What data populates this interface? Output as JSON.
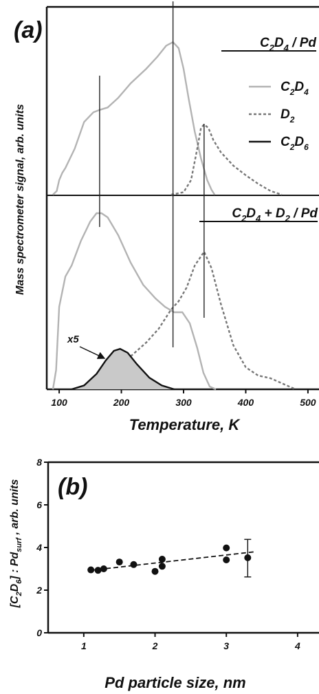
{
  "chart_data": [
    {
      "type": "line",
      "panel_label": "(a)",
      "xlabel": "Temperature, K",
      "ylabel": "Mass spectrometer signal, arb. units",
      "xlim": [
        80,
        520
      ],
      "x_ticks": [
        100,
        200,
        300,
        400,
        500
      ],
      "grid": false,
      "legend_position": "right",
      "legend": [
        {
          "label": "C2D4",
          "color": "#b3b3b3",
          "dash": "solid"
        },
        {
          "label": "D2",
          "color": "#777777",
          "dash": "dashed"
        },
        {
          "label": "C2D6",
          "color": "#111111",
          "dash": "solid"
        }
      ],
      "vertical_markers_K": [
        165,
        283,
        333
      ],
      "subpanels": [
        {
          "title": "C2D4 / Pd",
          "title_parts": [
            [
              "C",
              "n"
            ],
            [
              "2",
              "s"
            ],
            [
              "D",
              "n"
            ],
            [
              "4",
              "s"
            ],
            [
              " / Pd",
              "n"
            ]
          ],
          "series": [
            {
              "name": "C2D4",
              "x": [
                90,
                96,
                100,
                105,
                110,
                125,
                140,
                155,
                165,
                178,
                195,
                215,
                240,
                258,
                272,
                283,
                292,
                300,
                308,
                318,
                328,
                338,
                345,
                350
              ],
              "y": [
                0,
                3,
                12,
                18,
                22,
                38,
                60,
                68,
                70,
                72,
                80,
                92,
                104,
                114,
                123,
                126,
                121,
                104,
                80,
                52,
                30,
                12,
                4,
                0
              ]
            },
            {
              "name": "D2",
              "x": [
                280,
                300,
                312,
                322,
                328,
                333,
                340,
                348,
                360,
                380,
                400,
                420,
                440,
                458
              ],
              "y": [
                0,
                2,
                12,
                38,
                55,
                58,
                55,
                45,
                35,
                24,
                16,
                9,
                3,
                0
              ]
            }
          ]
        },
        {
          "title": "C2D4 + D2 / Pd",
          "title_parts": [
            [
              "C",
              "n"
            ],
            [
              "2",
              "s"
            ],
            [
              "D",
              "n"
            ],
            [
              "4",
              "s"
            ],
            [
              " + D",
              "n"
            ],
            [
              "2",
              "s"
            ],
            [
              " / Pd",
              "n"
            ]
          ],
          "series": [
            {
              "name": "C2D4",
              "x": [
                90,
                95,
                100,
                110,
                120,
                135,
                150,
                160,
                168,
                178,
                195,
                215,
                235,
                255,
                270,
                285,
                298,
                310,
                322,
                332,
                342,
                352
              ],
              "y": [
                0,
                14,
                60,
                82,
                90,
                108,
                122,
                128,
                128,
                125,
                112,
                92,
                76,
                66,
                60,
                56,
                56,
                48,
                30,
                12,
                2,
                0
              ]
            },
            {
              "name": "D2",
              "x": [
                215,
                240,
                260,
                280,
                292,
                305,
                318,
                333,
                345,
                360,
                380,
                400,
                420,
                440,
                460,
                480
              ],
              "y": [
                24,
                34,
                44,
                58,
                64,
                74,
                90,
                100,
                88,
                62,
                32,
                16,
                10,
                8,
                4,
                0
              ]
            },
            {
              "name": "C2D6",
              "scale_label": "x5",
              "x": [
                120,
                140,
                160,
                175,
                188,
                198,
                210,
                225,
                245,
                265,
                285
              ],
              "y": [
                0,
                4,
                16,
                30,
                40,
                42,
                38,
                26,
                12,
                4,
                0
              ]
            }
          ]
        }
      ]
    },
    {
      "type": "scatter",
      "panel_label": "(b)",
      "xlabel": "Pd particle size, nm",
      "ylabel_parts": [
        [
          "[C",
          "n"
        ],
        [
          "2",
          "s"
        ],
        [
          "D",
          "n"
        ],
        [
          "6",
          "s"
        ],
        [
          "] : Pd",
          "n"
        ],
        [
          "surf",
          "s"
        ],
        [
          " , arb. units",
          "n"
        ]
      ],
      "xlim": [
        0.5,
        4.3
      ],
      "ylim": [
        0,
        8
      ],
      "x_ticks": [
        1,
        2,
        3,
        4
      ],
      "y_ticks": [
        0,
        2,
        4,
        6,
        8
      ],
      "grid": false,
      "points": [
        {
          "x": 1.1,
          "y": 2.95
        },
        {
          "x": 1.2,
          "y": 2.93
        },
        {
          "x": 1.28,
          "y": 3.0
        },
        {
          "x": 1.5,
          "y": 3.32
        },
        {
          "x": 1.7,
          "y": 3.2
        },
        {
          "x": 2.0,
          "y": 2.88
        },
        {
          "x": 2.1,
          "y": 3.12
        },
        {
          "x": 2.1,
          "y": 3.45
        },
        {
          "x": 3.0,
          "y": 3.42
        },
        {
          "x": 3.0,
          "y": 3.98
        },
        {
          "x": 3.3,
          "y": 3.52
        }
      ],
      "error_bar": {
        "x": 3.3,
        "y": 3.52,
        "low": 2.62,
        "high": 4.38
      },
      "fit_line": {
        "x": [
          1.1,
          3.4
        ],
        "y": [
          2.93,
          3.8
        ]
      }
    }
  ]
}
